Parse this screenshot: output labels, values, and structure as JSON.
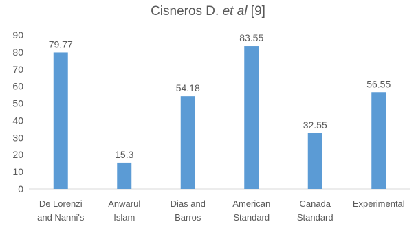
{
  "chart_data": {
    "type": "bar",
    "title": {
      "prefix": "Cisneros D. ",
      "italic": "et al",
      "suffix": " [9]"
    },
    "categories": [
      [
        "De Lorenzi",
        "and Nanni's"
      ],
      [
        "Anwarul",
        "Islam"
      ],
      [
        "Dias and",
        "Barros"
      ],
      [
        "American",
        "Standard"
      ],
      [
        "Canada",
        "Standard"
      ],
      [
        "Experimental"
      ]
    ],
    "values": [
      79.77,
      15.3,
      54.18,
      83.55,
      32.55,
      56.55
    ],
    "value_labels": [
      "79.77",
      "15.3",
      "54.18",
      "83.55",
      "32.55",
      "56.55"
    ],
    "ylim": [
      0,
      90
    ],
    "yticks": [
      0,
      10,
      20,
      30,
      40,
      50,
      60,
      70,
      80,
      90
    ],
    "grid": false,
    "legend": "none",
    "colors": {
      "bar": "#5B9BD5",
      "text": "#595959",
      "axis": "#D9D9D9"
    }
  }
}
